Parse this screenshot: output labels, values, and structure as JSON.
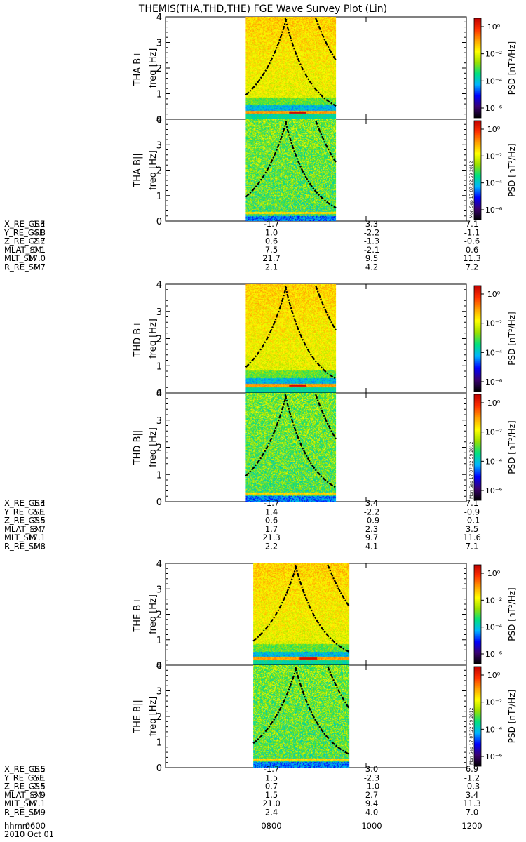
{
  "title": "THEMIS(THA,THD,THE) FGE Wave Survey Plot (Lin)",
  "chart_data": {
    "type": "heatmap",
    "x_axis": {
      "unit": "hhmm",
      "range": [
        "0600",
        "1200"
      ],
      "ticks": [
        "0600",
        "0800",
        "1000",
        "1200"
      ],
      "label": "hhmm",
      "date": "2010 Oct 01"
    },
    "y_axis": {
      "range": [
        0,
        4
      ],
      "ticks": [
        "0",
        "1",
        "2",
        "3",
        "4"
      ]
    },
    "colorbar": {
      "label": "PSD [nT²/Hz]",
      "log_ticks": [
        "10⁰",
        "10⁻²",
        "10⁻⁴",
        "10⁻⁶"
      ],
      "colors": [
        "#000000",
        "#3a0070",
        "#0000ff",
        "#00b4ff",
        "#00e080",
        "#9be000",
        "#ffff00",
        "#ffa000",
        "#ff3000",
        "#c00000"
      ],
      "stamp": "Mon Sep 17 07:22:59 2012"
    },
    "probes": [
      {
        "id": "tha",
        "panels": [
          {
            "label": "THA B⊥",
            "ylabel": "freq [Hz]",
            "mode": "perp",
            "data_start": "0736",
            "data_end": "0924",
            "stamp": false
          },
          {
            "label": "THA B||",
            "ylabel": "freq [Hz]",
            "mode": "par",
            "data_start": "0736",
            "data_end": "0924",
            "stamp": true
          }
        ],
        "ephemeris": [
          {
            "name": "X_RE_GSE",
            "values": [
              "1.4",
              "-1.7",
              "3.3",
              "7.1"
            ]
          },
          {
            "name": "Y_RE_GSE",
            "values": [
              "4.8",
              "1.0",
              "-2.2",
              "-1.1"
            ]
          },
          {
            "name": "Z_RE_GSE",
            "values": [
              "2.7",
              "0.6",
              "-1.3",
              "-0.6"
            ]
          },
          {
            "name": "MLAT_SM",
            "values": [
              "-0.1",
              "7.5",
              "-2.1",
              "0.6"
            ]
          },
          {
            "name": "MLT_SM",
            "values": [
              "17.0",
              "21.7",
              "9.5",
              "11.3"
            ]
          },
          {
            "name": "R_RE_SM",
            "values": [
              "5.7",
              "2.1",
              "4.2",
              "7.2"
            ]
          }
        ]
      },
      {
        "id": "thd",
        "panels": [
          {
            "label": "THD B⊥",
            "ylabel": "freq [Hz]",
            "mode": "perp",
            "data_start": "0736",
            "data_end": "0924",
            "stamp": false
          },
          {
            "label": "THD B||",
            "ylabel": "freq [Hz]",
            "mode": "par",
            "data_start": "0736",
            "data_end": "0924",
            "stamp": true
          }
        ],
        "ephemeris": [
          {
            "name": "X_RE_GSE",
            "values": [
              "1.4",
              "-1.7",
              "3.4",
              "7.1"
            ]
          },
          {
            "name": "Y_RE_GSE",
            "values": [
              "5.1",
              "1.4",
              "-2.2",
              "-0.9"
            ]
          },
          {
            "name": "Z_RE_GSE",
            "values": [
              "2.5",
              "0.6",
              "-0.9",
              "-0.1"
            ]
          },
          {
            "name": "MLAT_SM",
            "values": [
              "-3.7",
              "1.7",
              "2.3",
              "3.5"
            ]
          },
          {
            "name": "MLT_SM",
            "values": [
              "17.1",
              "21.3",
              "9.7",
              "11.6"
            ]
          },
          {
            "name": "R_RE_SM",
            "values": [
              "5.8",
              "2.2",
              "4.1",
              "7.1"
            ]
          }
        ]
      },
      {
        "id": "the",
        "panels": [
          {
            "label": "THE B⊥",
            "ylabel": "freq [Hz]",
            "mode": "perp",
            "data_start": "0745",
            "data_end": "0940",
            "stamp": false
          },
          {
            "label": "THE B||",
            "ylabel": "freq [Hz]",
            "mode": "par",
            "data_start": "0745",
            "data_end": "0940",
            "stamp": true
          }
        ],
        "ephemeris": [
          {
            "name": "X_RE_GSE",
            "values": [
              "1.5",
              "-1.7",
              "3.0",
              "6.9"
            ]
          },
          {
            "name": "Y_RE_GSE",
            "values": [
              "5.1",
              "1.5",
              "-2.3",
              "-1.2"
            ]
          },
          {
            "name": "Z_RE_GSE",
            "values": [
              "2.5",
              "0.7",
              "-1.0",
              "-0.3"
            ]
          },
          {
            "name": "MLAT_SM",
            "values": [
              "-3.9",
              "1.5",
              "2.7",
              "3.4"
            ]
          },
          {
            "name": "MLT_SM",
            "values": [
              "17.1",
              "21.0",
              "9.4",
              "11.3"
            ]
          },
          {
            "name": "R_RE_SM",
            "values": [
              "5.9",
              "2.4",
              "4.0",
              "7.0"
            ]
          }
        ]
      }
    ]
  }
}
